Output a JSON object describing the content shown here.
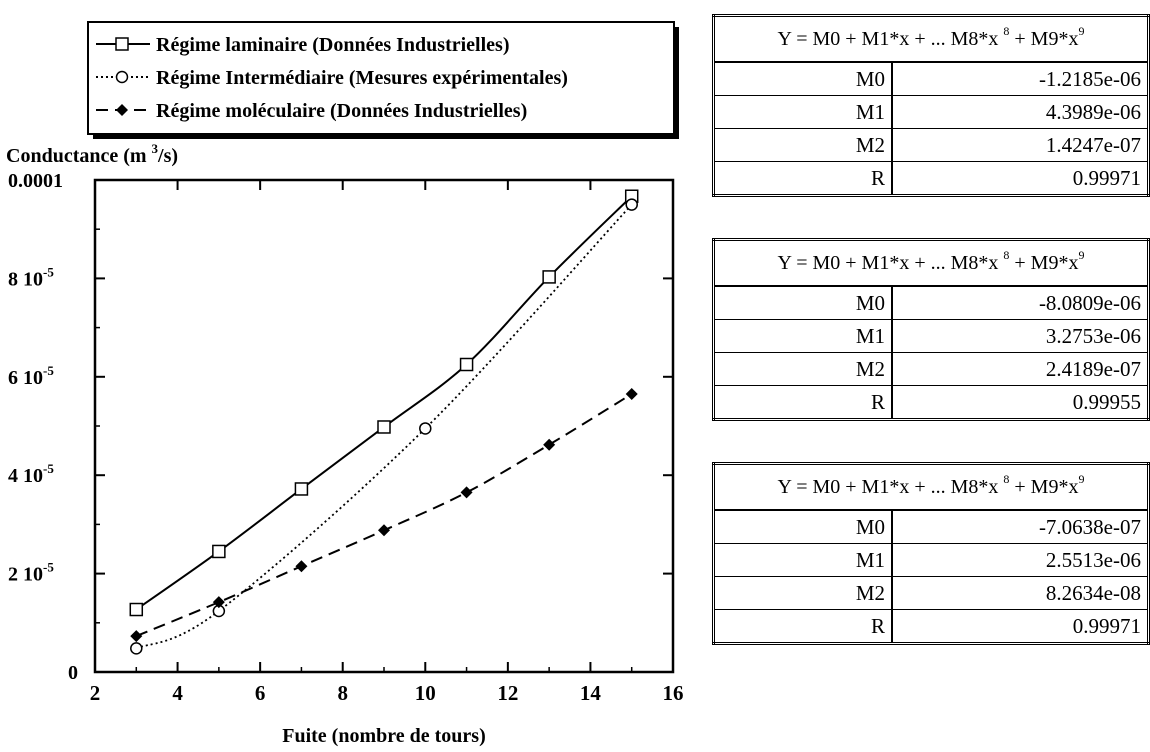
{
  "chart_data": {
    "type": "line",
    "ylabel": "Conductance (m 3/s)",
    "xlabel": "Fuite (nombre de tours)",
    "xlim": [
      2,
      16
    ],
    "ylim": [
      0,
      0.0001
    ],
    "x_ticks": [
      2,
      4,
      6,
      8,
      10,
      12,
      14,
      16
    ],
    "y_ticks": [
      {
        "value": 0,
        "label": "0"
      },
      {
        "value": 2e-05,
        "label": "2 10-5"
      },
      {
        "value": 4e-05,
        "label": "4 10-5"
      },
      {
        "value": 6e-05,
        "label": "6 10-5"
      },
      {
        "value": 8e-05,
        "label": "8 10-5"
      },
      {
        "value": 0.0001,
        "label": "0.0001"
      }
    ],
    "grid": false,
    "legend_position": "top-left",
    "series": [
      {
        "name": "Régime laminaire (Données Industrielles)",
        "marker": "open-square",
        "line": "solid",
        "x": [
          3,
          5,
          7,
          9,
          11,
          13,
          15
        ],
        "values": [
          1.27e-05,
          2.45e-05,
          3.72e-05,
          4.98e-05,
          6.25e-05,
          8.03e-05,
          9.67e-05
        ]
      },
      {
        "name": "Régime Intermédiaire (Mesures expérimentales)",
        "marker": "open-circle",
        "line": "dotted",
        "x": [
          3,
          5,
          10,
          15
        ],
        "values": [
          4.8e-06,
          1.24e-05,
          4.95e-05,
          9.5e-05
        ]
      },
      {
        "name": "Régime moléculaire (Données Industrielles)",
        "marker": "filled-diamond",
        "line": "dashed",
        "x": [
          3,
          5,
          7,
          9,
          11,
          13,
          15
        ],
        "values": [
          7.3e-06,
          1.42e-05,
          2.15e-05,
          2.88e-05,
          3.65e-05,
          4.62e-05,
          5.65e-05
        ]
      }
    ]
  },
  "fit_tables": [
    {
      "formula": "Y = M0 + M1*x + ... M8*x 8 + M9*x9",
      "rows": [
        {
          "param": "M0",
          "value": "-1.2185e-06"
        },
        {
          "param": "M1",
          "value": "4.3989e-06"
        },
        {
          "param": "M2",
          "value": "1.4247e-07"
        },
        {
          "param": "R",
          "value": "0.99971"
        }
      ]
    },
    {
      "formula": "Y = M0 + M1*x + ... M8*x 8 + M9*x9",
      "rows": [
        {
          "param": "M0",
          "value": "-8.0809e-06"
        },
        {
          "param": "M1",
          "value": "3.2753e-06"
        },
        {
          "param": "M2",
          "value": "2.4189e-07"
        },
        {
          "param": "R",
          "value": "0.99955"
        }
      ]
    },
    {
      "formula": "Y = M0 + M1*x + ... M8*x 8 + M9*x9",
      "rows": [
        {
          "param": "M0",
          "value": "-7.0638e-07"
        },
        {
          "param": "M1",
          "value": "2.5513e-06"
        },
        {
          "param": "M2",
          "value": "8.2634e-08"
        },
        {
          "param": "R",
          "value": "0.99971"
        }
      ]
    }
  ]
}
